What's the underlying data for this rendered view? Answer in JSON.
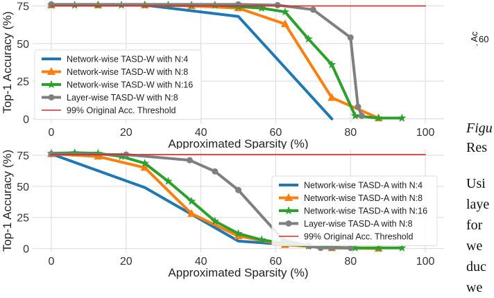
{
  "chart_data": [
    {
      "type": "line",
      "ylabel": "Top-1 Accuracy (%)",
      "xlabel": "Approximated Sparsity (%)",
      "xlim": [
        -5,
        105
      ],
      "ylim": [
        -3,
        78
      ],
      "xticks": [
        0,
        20,
        40,
        60,
        80,
        100
      ],
      "yticks": [
        0,
        25,
        50,
        75
      ],
      "grid": true,
      "legend_position": "lower-left",
      "series": [
        {
          "name": "Network-wise TASD-W with N:4",
          "color": "#1f77b4",
          "marker": "none",
          "x": [
            0,
            25,
            50,
            75
          ],
          "y": [
            75.5,
            75.5,
            68,
            0
          ]
        },
        {
          "name": "Network-wise TASD-W with N:8",
          "color": "#ff7f0e",
          "marker": "triangle",
          "x": [
            0,
            12.5,
            25,
            37.5,
            50,
            62.5,
            75,
            87.5
          ],
          "y": [
            75.5,
            75.5,
            75.5,
            75,
            73.5,
            63,
            14,
            0.5
          ]
        },
        {
          "name": "Network-wise TASD-W with N:16",
          "color": "#2ca02c",
          "marker": "star",
          "x": [
            0,
            6.25,
            12.5,
            18.75,
            25,
            31.25,
            37.5,
            43.75,
            50,
            56.25,
            62.5,
            68.75,
            75,
            81.25,
            87.5,
            93.75
          ],
          "y": [
            75.5,
            75.5,
            75.5,
            75.5,
            75.5,
            75.5,
            75.5,
            75.5,
            74.5,
            73.5,
            71,
            53,
            36,
            2,
            0.5,
            0.5
          ]
        },
        {
          "name": "Layer-wise TASD-W with N:8",
          "color": "#7f7f7f",
          "marker": "circle",
          "x": [
            0,
            50,
            60.5,
            70,
            80,
            82,
            83
          ],
          "y": [
            76,
            76,
            75.5,
            72.5,
            54,
            8,
            2
          ]
        },
        {
          "name": "99% Original Acc. Threshold",
          "color": "#d62728",
          "marker": "none",
          "x": [
            0,
            100
          ],
          "y": [
            75,
            75
          ]
        }
      ]
    },
    {
      "type": "line",
      "ylabel": "Top-1 Accuracy (%)",
      "xlabel": "Approximated Sparsity (%)",
      "xlim": [
        -5,
        105
      ],
      "ylim": [
        -3,
        80
      ],
      "xticks": [
        0,
        20,
        40,
        60,
        80,
        100
      ],
      "yticks": [
        0,
        25,
        50,
        75
      ],
      "grid": true,
      "legend_position": "center-right",
      "series": [
        {
          "name": "Network-wise TASD-A with N:4",
          "color": "#1f77b4",
          "marker": "none",
          "x": [
            0,
            25,
            50,
            75
          ],
          "y": [
            76,
            49,
            6,
            0.5
          ]
        },
        {
          "name": "Network-wise TASD-A with N:8",
          "color": "#ff7f0e",
          "marker": "triangle",
          "x": [
            0,
            12.5,
            25,
            37.5,
            50,
            62.5,
            75,
            87.5
          ],
          "y": [
            76,
            74,
            65,
            28,
            10,
            3,
            0.5,
            0
          ]
        },
        {
          "name": "Network-wise TASD-A with N:16",
          "color": "#2ca02c",
          "marker": "star",
          "x": [
            0,
            6.25,
            12.5,
            18.75,
            25,
            31.25,
            37.5,
            43.75,
            50,
            56.25,
            62.5,
            68.75,
            75,
            81.25,
            87.5,
            93.75
          ],
          "y": [
            76.5,
            77,
            76.5,
            74,
            68.5,
            54,
            38,
            22,
            12,
            7,
            4,
            2,
            1,
            0.5,
            0.5,
            0.5
          ]
        },
        {
          "name": "Layer-wise TASD-A with N:8",
          "color": "#7f7f7f",
          "marker": "circle",
          "x": [
            0,
            20,
            37,
            43.75,
            50,
            62,
            69,
            72,
            75,
            80
          ],
          "y": [
            76,
            75.5,
            71,
            62,
            47,
            7,
            2,
            0.5,
            0.5,
            0.5
          ]
        },
        {
          "name": "99% Original Acc. Threshold",
          "color": "#d62728",
          "marker": "none",
          "x": [
            0,
            100
          ],
          "y": [
            75.5,
            75.5
          ]
        }
      ]
    }
  ],
  "side_text": {
    "axis_fragment": "Top-1 Ac",
    "tick_fragment": "60",
    "figure_fragment": "Figu",
    "res_fragment": "Res",
    "para_lines": [
      "Usi",
      "laye",
      "for",
      "we",
      "duc",
      "we"
    ]
  }
}
